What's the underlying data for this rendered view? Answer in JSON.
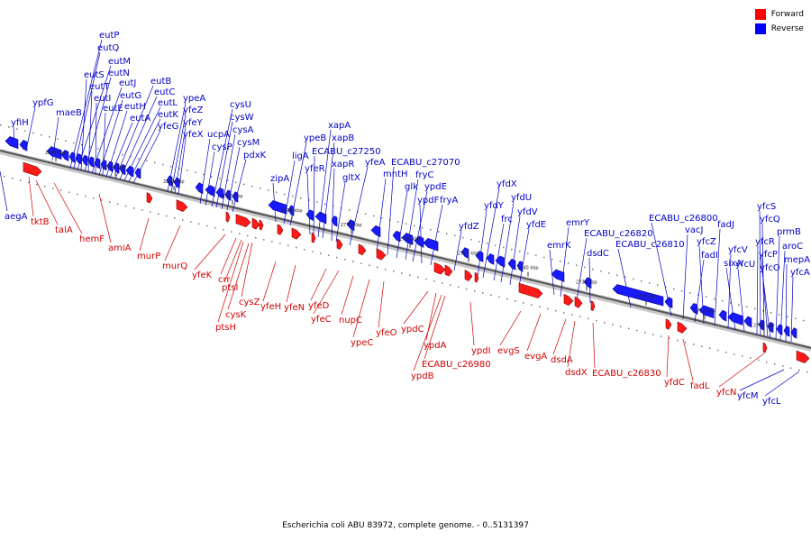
{
  "legend": [
    {
      "label": "Forward",
      "color": "#ff0000"
    },
    {
      "label": "Reverse",
      "color": "#0000ff"
    }
  ],
  "caption": "Escherichia coli ABU 83972, complete genome. - 0..5131397",
  "tick_labels": [
    "2820 kbp",
    "2810 kbp",
    "2800 kbp",
    "2790 kbp",
    "2780 kbp",
    "2770 kbp",
    "2760 kbp",
    "2750 kbp",
    "2740 kbp",
    "2730 kbp",
    "2720 kbp",
    "2710 kbp",
    "2700 kbp"
  ],
  "reverse_genes": [
    "yfiH",
    "ypfG",
    "maeB",
    "eutP",
    "eutQ",
    "eutM",
    "eutS",
    "eutN",
    "eutT",
    "eutJ",
    "eutI",
    "eutG",
    "eutE",
    "eutH",
    "eutA",
    "eutB",
    "eutC",
    "eutL",
    "eutK",
    "yfeG",
    "ypeA",
    "yfeZ",
    "yfeY",
    "yfeX",
    "ucpA",
    "cysP",
    "cysU",
    "cysW",
    "cysA",
    "cysM",
    "pdxK",
    "zipA",
    "ligA",
    "ypeB",
    "yfeR",
    "ECABU_c27250",
    "xapA",
    "xapB",
    "xapR",
    "gltX",
    "yfeA",
    "mntH",
    "ECABU_c27070",
    "glk",
    "fryC",
    "ypdE",
    "ypdF",
    "fryA",
    "yfdZ",
    "yfdY",
    "yfdX",
    "frc",
    "yfdU",
    "yfdV",
    "yfdE",
    "emrK",
    "emrY",
    "dsdC",
    "ECABU_c26820",
    "ECABU_c26810",
    "ECABU_c26800",
    "vacJ",
    "fadI",
    "yfcZ",
    "fadJ",
    "yfcV",
    "sixA",
    "yfcU",
    "yfcR",
    "yfcS",
    "yfcQ",
    "yfcP",
    "yfcO",
    "prmB",
    "aroC",
    "mepA",
    "yfcA",
    "aegA",
    "yfcM",
    "yfcL"
  ],
  "forward_genes": [
    "tktB",
    "talA",
    "hemF",
    "amiA",
    "murP",
    "murQ",
    "yfeK",
    "crr",
    "ptsI",
    "cysZ",
    "cysK",
    "ptsH",
    "yfeH",
    "yfeN",
    "yfeD",
    "yfeC",
    "nupC",
    "ypeC",
    "yfeO",
    "ypdC",
    "ypdA",
    "ypdB",
    "ECABU_c26980",
    "ypdI",
    "evgS",
    "evgA",
    "dsdA",
    "dsdX",
    "ECABU_c26830",
    "yfdC",
    "fadL",
    "yfcN"
  ]
}
